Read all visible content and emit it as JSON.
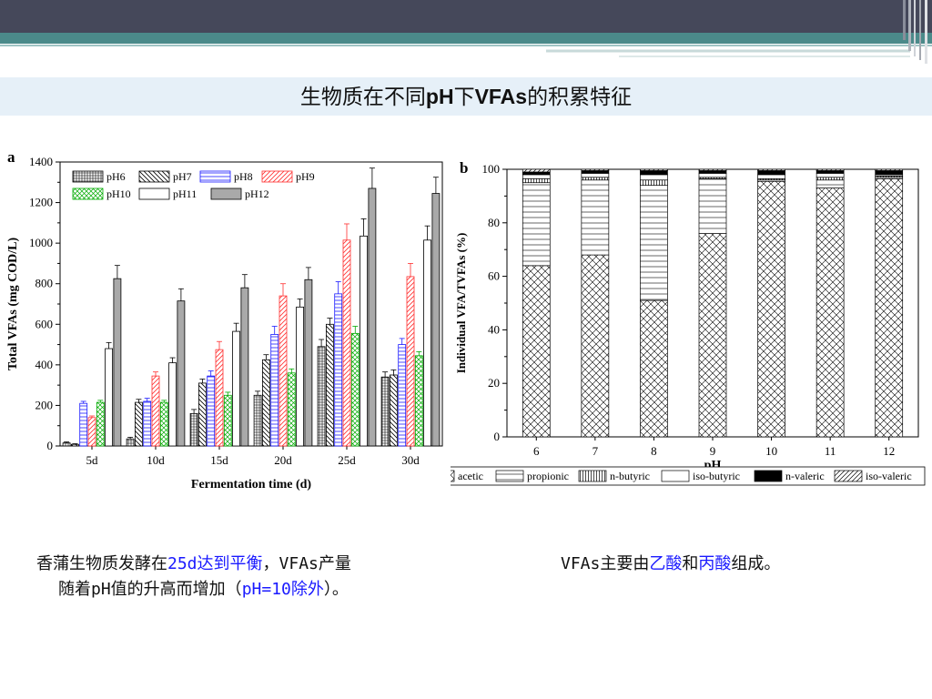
{
  "slide": {
    "title_pre": "生物质在不同",
    "title_ph": "pH",
    "title_mid": "下",
    "title_vfa": "VFAs",
    "title_post": "的积累特征"
  },
  "captions": {
    "left_1a": "香蒲生物质发酵在",
    "left_1b": "25d达到平衡",
    "left_1c": "，VFAs产量",
    "left_2a": "随着pH值的升高而增加（",
    "left_2b": "pH=10除外",
    "left_2c": "）。",
    "right_a": "VFAs主要由",
    "right_b": "乙酸",
    "right_c": "和",
    "right_d": "丙酸",
    "right_e": "组成。"
  },
  "colors": {
    "blue_text": "#1a1aff",
    "title_bar": "#e6f0f8",
    "top_bar": "#45485a",
    "teal_band": "#4b8a8a"
  },
  "chart_data": [
    {
      "type": "bar",
      "panel_label": "a",
      "xlabel": "Fermentation time (d)",
      "ylabel": "Total VFAs (mg COD/L)",
      "ylim": [
        0,
        1400
      ],
      "yticks": [
        "0",
        "200",
        "400",
        "600",
        "800",
        "1000",
        "1200",
        "1400"
      ],
      "categories": [
        "5d",
        "10d",
        "15d",
        "20d",
        "25d",
        "30d"
      ],
      "legend_position": "top-left",
      "series": [
        {
          "name": "pH6",
          "color": "#000000",
          "values": [
            15,
            35,
            160,
            250,
            490,
            340
          ],
          "errors": [
            5,
            8,
            20,
            20,
            35,
            25
          ]
        },
        {
          "name": "pH7",
          "color": "#000000",
          "values": [
            8,
            215,
            310,
            425,
            600,
            350
          ],
          "errors": [
            3,
            15,
            20,
            25,
            30,
            25
          ]
        },
        {
          "name": "pH8",
          "color": "#1a1aff",
          "values": [
            210,
            220,
            345,
            550,
            750,
            500
          ],
          "errors": [
            10,
            15,
            25,
            40,
            60,
            30
          ]
        },
        {
          "name": "pH9",
          "color": "#ff4040",
          "values": [
            140,
            345,
            475,
            740,
            1015,
            835
          ],
          "errors": [
            8,
            20,
            40,
            60,
            80,
            65
          ]
        },
        {
          "name": "pH10",
          "color": "#00aa00",
          "values": [
            215,
            215,
            250,
            360,
            555,
            445
          ],
          "errors": [
            10,
            10,
            15,
            20,
            35,
            20
          ]
        },
        {
          "name": "pH11",
          "color": "#000000",
          "values": [
            480,
            410,
            565,
            685,
            1035,
            1015
          ],
          "errors": [
            30,
            25,
            40,
            40,
            85,
            70
          ]
        },
        {
          "name": "pH12",
          "color": "#999999",
          "values": [
            825,
            715,
            780,
            820,
            1270,
            1245
          ],
          "errors": [
            65,
            60,
            65,
            60,
            100,
            80
          ]
        }
      ]
    },
    {
      "type": "bar",
      "stacked": true,
      "panel_label": "b",
      "xlabel": "pH",
      "ylabel": "Individual VFA/TVFAs (%)",
      "ylim": [
        0,
        100
      ],
      "yticks": [
        "0",
        "20",
        "40",
        "60",
        "80",
        "100"
      ],
      "categories": [
        "6",
        "7",
        "8",
        "9",
        "10",
        "11",
        "12"
      ],
      "legend_position": "bottom",
      "series": [
        {
          "name": "acetic",
          "values": [
            64,
            68,
            51,
            76,
            95.5,
            93,
            96.5
          ]
        },
        {
          "name": "propionic",
          "values": [
            31,
            28,
            43,
            20.5,
            0.5,
            3,
            0.5
          ]
        },
        {
          "name": "n-butyric",
          "values": [
            1.5,
            1,
            2,
            0.5,
            0.5,
            1,
            0.5
          ]
        },
        {
          "name": "iso-butyric",
          "values": [
            1.5,
            1.5,
            2,
            1.5,
            1.5,
            1.5,
            0.5
          ]
        },
        {
          "name": "n-valeric",
          "values": [
            1,
            1,
            1.5,
            1,
            1.5,
            1,
            1.5
          ]
        },
        {
          "name": "iso-valeric",
          "values": [
            1,
            0.5,
            0.5,
            0.5,
            0.5,
            0.5,
            0.5
          ]
        }
      ]
    }
  ]
}
